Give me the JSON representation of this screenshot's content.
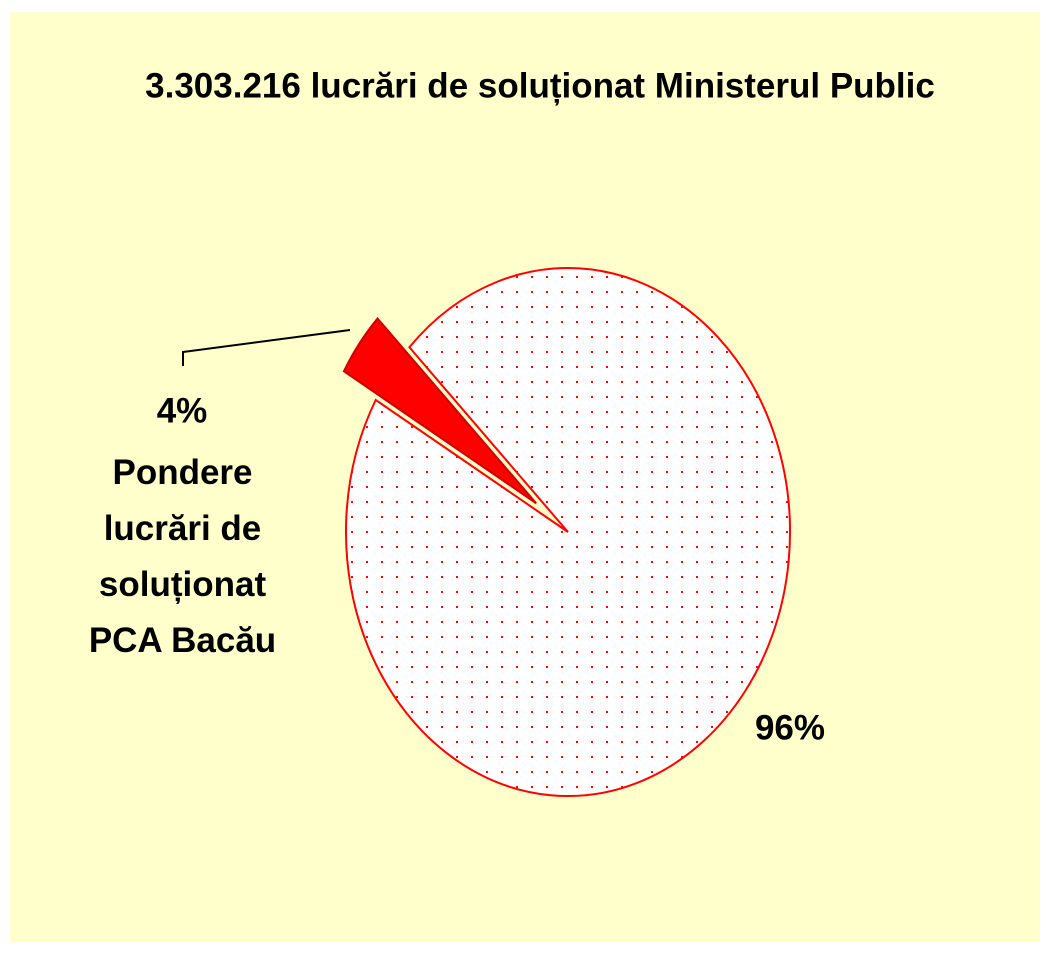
{
  "chart_data": {
    "type": "pie",
    "title": "3.303.216 lucrări de soluționat Ministerul Public",
    "categories": [
      "Pondere lucrări de soluționat PCA Bacău",
      null
    ],
    "values": [
      4,
      96
    ],
    "value_labels": [
      "4%",
      "96%"
    ],
    "colors": [
      "#ff0000",
      "#ff0000"
    ],
    "background": "#ffffcc"
  }
}
